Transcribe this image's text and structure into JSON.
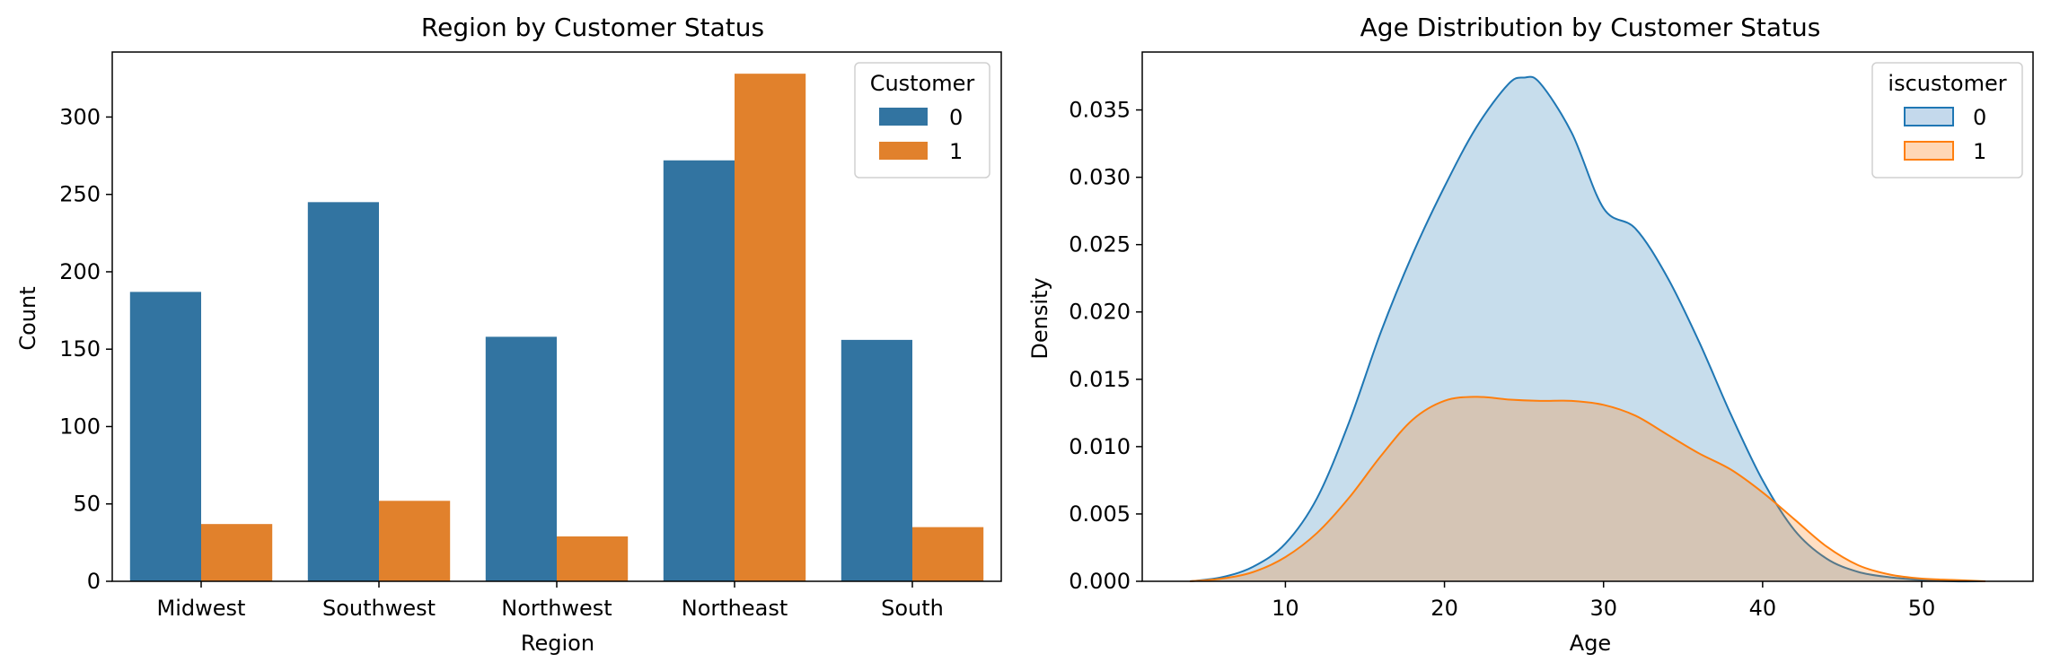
{
  "chart_data": [
    {
      "type": "bar",
      "title": "Region by Customer Status",
      "xlabel": "Region",
      "ylabel": "Count",
      "categories": [
        "Midwest",
        "Southwest",
        "Northwest",
        "Northeast",
        "South"
      ],
      "series": [
        {
          "name": "0",
          "color": "#3274a1",
          "values": [
            187,
            245,
            158,
            272,
            156
          ]
        },
        {
          "name": "1",
          "color": "#e1812c",
          "values": [
            37,
            52,
            29,
            328,
            35
          ]
        }
      ],
      "ylim": [
        0,
        342
      ],
      "yticks": [
        0,
        50,
        100,
        150,
        200,
        250,
        300
      ],
      "legend": {
        "title": "Customer",
        "placement": "top-right"
      }
    },
    {
      "type": "area",
      "title": "Age Distribution by Customer Status",
      "xlabel": "Age",
      "ylabel": "Density",
      "xlim": [
        1,
        57
      ],
      "ylim": [
        0,
        0.0393
      ],
      "xticks": [
        10,
        20,
        30,
        40,
        50
      ],
      "yticks": [
        "0.000",
        "0.005",
        "0.010",
        "0.015",
        "0.020",
        "0.025",
        "0.030",
        "0.035"
      ],
      "series": [
        {
          "name": "0",
          "color": "#1f77b4",
          "fill": "#c4d9ec",
          "x": [
            4,
            6,
            8,
            10,
            12,
            14,
            16,
            18,
            20,
            22,
            24,
            25,
            26,
            28,
            30,
            32,
            34,
            36,
            38,
            40,
            42,
            44,
            46,
            48,
            50,
            52,
            54
          ],
          "y": [
            0,
            0.0003,
            0.0011,
            0.0028,
            0.0062,
            0.0118,
            0.0185,
            0.0243,
            0.0293,
            0.0337,
            0.0369,
            0.0374,
            0.037,
            0.0333,
            0.0277,
            0.0262,
            0.0226,
            0.0178,
            0.0124,
            0.0075,
            0.0038,
            0.0017,
            0.0007,
            0.0003,
            0.0001,
            0,
            0
          ]
        },
        {
          "name": "1",
          "color": "#ff7f0e",
          "fill": "#ffd7b5",
          "x": [
            4,
            6,
            8,
            10,
            12,
            14,
            16,
            18,
            20,
            22,
            24,
            26,
            28,
            30,
            32,
            34,
            36,
            38,
            40,
            42,
            44,
            46,
            48,
            50,
            52,
            54
          ],
          "y": [
            0,
            0.0002,
            0.0007,
            0.0018,
            0.0036,
            0.0062,
            0.0093,
            0.012,
            0.0134,
            0.0137,
            0.0135,
            0.0134,
            0.0134,
            0.0131,
            0.0123,
            0.0109,
            0.0095,
            0.0083,
            0.0066,
            0.0046,
            0.0026,
            0.0012,
            0.0005,
            0.0002,
            0.0001,
            0
          ]
        }
      ],
      "legend": {
        "title": "iscustomer",
        "placement": "top-right"
      }
    }
  ]
}
